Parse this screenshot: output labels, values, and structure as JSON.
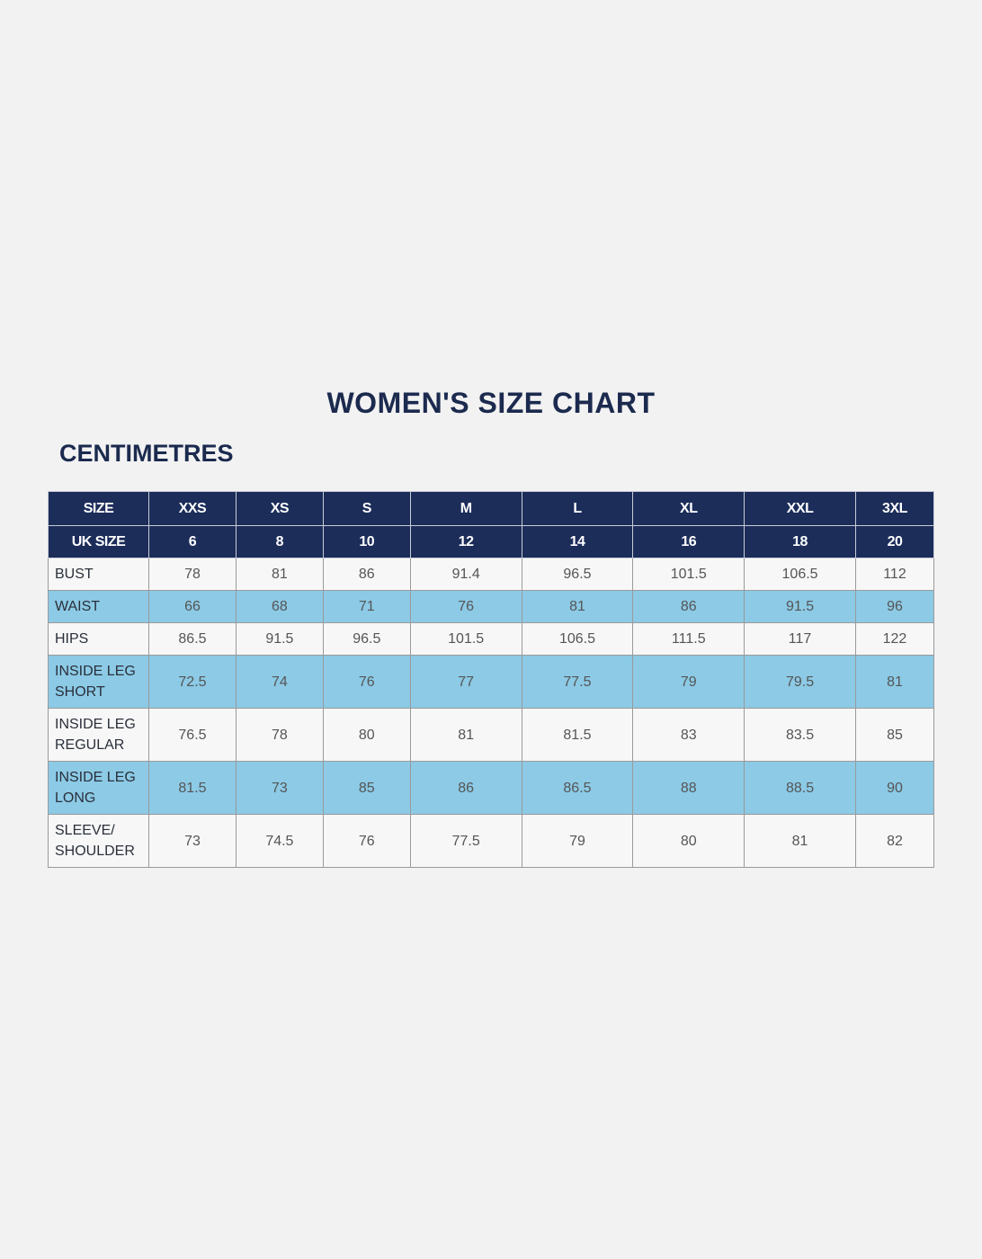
{
  "header": {
    "title": "WOMEN'S SIZE CHART",
    "subtitle": "CENTIMETRES"
  },
  "table": {
    "rows": [
      [
        "SIZE",
        "XXS",
        "XS",
        "S",
        "M",
        "L",
        "XL",
        "XXL",
        "3XL"
      ],
      [
        "UK SIZE",
        6,
        8,
        10,
        12,
        14,
        16,
        18,
        20
      ],
      [
        "BUST",
        78,
        81,
        86,
        91.4,
        96.5,
        101.5,
        106.5,
        112
      ],
      [
        "WAIST",
        66,
        68,
        71,
        76,
        81,
        86,
        91.5,
        96
      ],
      [
        "HIPS",
        86.5,
        91.5,
        96.5,
        101.5,
        106.5,
        111.5,
        117,
        122
      ],
      [
        "INSIDE LEG SHORT",
        72.5,
        74,
        76,
        77,
        77.5,
        79,
        79.5,
        81
      ],
      [
        "INSIDE LEG REGULAR",
        76.5,
        78,
        80,
        81,
        81.5,
        83,
        83.5,
        85
      ],
      [
        "INSIDE LEG LONG",
        81.5,
        73,
        85,
        86,
        86.5,
        88,
        88.5,
        90
      ],
      [
        "SLEEVE/ SHOULDER",
        73,
        74.5,
        76,
        77.5,
        79,
        80,
        81,
        82
      ]
    ]
  }
}
